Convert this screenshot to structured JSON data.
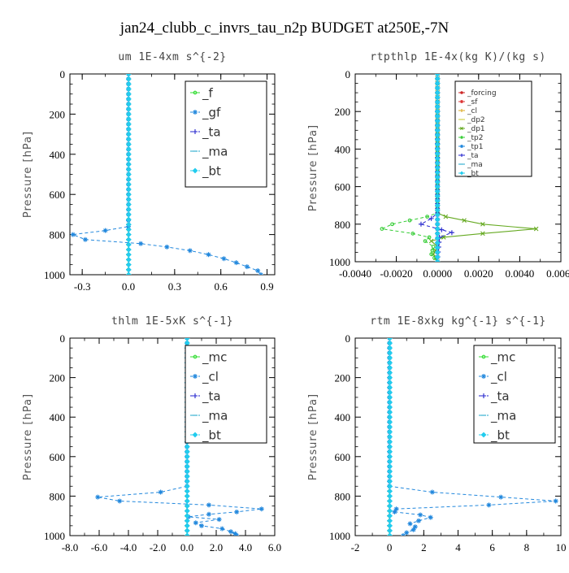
{
  "figure": {
    "title": "jan24_clubb_c_invrs_tau_n2p  BUDGET at250E,-7N"
  },
  "chart_data": [
    {
      "type": "line",
      "title": "um   1E-4xm s^{-2}",
      "ylabel": "Pressure [hPa]",
      "xlim": [
        -0.38,
        0.95
      ],
      "ylim": [
        1000,
        0
      ],
      "xticks": [
        -0.3,
        0.0,
        0.3,
        0.6,
        0.9
      ],
      "xtick_labels": [
        "-0.3",
        "0.0",
        "0.3",
        "0.6",
        "0.9"
      ],
      "yticks": [
        0,
        200,
        400,
        600,
        800,
        1000
      ],
      "ytick_labels": [
        "0",
        "200",
        "400",
        "600",
        "800",
        "1000"
      ],
      "legend_position": "top-right",
      "legend_font": 15,
      "series": [
        {
          "name": "_f",
          "color": "#33dd33",
          "marker": "circle",
          "dash": "none",
          "points": [
            [
              0,
              0
            ],
            [
              0,
              200
            ],
            [
              0,
              400
            ],
            [
              0,
              600
            ],
            [
              0,
              800
            ],
            [
              0,
              1000
            ]
          ]
        },
        {
          "name": "_gf",
          "color": "#2288dd",
          "marker": "asterisk",
          "dash": "4,3",
          "points": [
            [
              0,
              0
            ],
            [
              0,
              700
            ],
            [
              0,
              760
            ],
            [
              -0.15,
              780
            ],
            [
              -0.36,
              800
            ],
            [
              -0.28,
              825
            ],
            [
              0.08,
              845
            ],
            [
              0.25,
              862
            ],
            [
              0.4,
              880
            ],
            [
              0.52,
              900
            ],
            [
              0.62,
              920
            ],
            [
              0.7,
              940
            ],
            [
              0.77,
              960
            ],
            [
              0.84,
              980
            ],
            [
              0.86,
              1000
            ]
          ]
        },
        {
          "name": "_ta",
          "color": "#2222cc",
          "marker": "plus",
          "dash": "4,3",
          "points": [
            [
              0,
              0
            ],
            [
              0,
              1000
            ]
          ]
        },
        {
          "name": "_ma",
          "color": "#22aacc",
          "marker": "dash",
          "dash": "4,3",
          "points": [
            [
              0,
              0
            ],
            [
              0,
              1000
            ]
          ]
        },
        {
          "name": "_bt",
          "color": "#22ccee",
          "marker": "diamond",
          "dash": "4,3",
          "points": [
            [
              0.002,
              0
            ],
            [
              0.002,
              400
            ],
            [
              0.002,
              1000
            ]
          ]
        }
      ]
    },
    {
      "type": "line",
      "title": "rtpthlp   1E-4x(kg K)/(kg s)",
      "ylabel": "Pressure [hPa]",
      "xlim": [
        -0.004,
        0.006
      ],
      "ylim": [
        1000,
        0
      ],
      "xticks": [
        -0.004,
        -0.002,
        0.0,
        0.002,
        0.004,
        0.006
      ],
      "xtick_labels": [
        "-0.0040",
        "-0.0020",
        "0.0000",
        "0.0020",
        "0.0040",
        "0.0060"
      ],
      "yticks": [
        0,
        200,
        400,
        600,
        800,
        1000
      ],
      "ytick_labels": [
        "0",
        "200",
        "400",
        "600",
        "800",
        "1000"
      ],
      "legend_position": "top-right",
      "legend_font": 9,
      "series": [
        {
          "name": "_forcing",
          "color": "#cc2222",
          "marker": "circle",
          "dash": "none",
          "points": [
            [
              0,
              0
            ],
            [
              0,
              1000
            ]
          ]
        },
        {
          "name": "_sf",
          "color": "#dd3333",
          "marker": "asterisk",
          "dash": "none",
          "points": [
            [
              0,
              0
            ],
            [
              0,
              1000
            ]
          ]
        },
        {
          "name": "_cl",
          "color": "#ddaa22",
          "marker": "plus",
          "dash": "none",
          "points": [
            [
              0,
              0
            ],
            [
              0,
              1000
            ]
          ]
        },
        {
          "name": "_dp2",
          "color": "#cccc33",
          "marker": "dash",
          "dash": "none",
          "points": [
            [
              0,
              0
            ],
            [
              0,
              1000
            ]
          ]
        },
        {
          "name": "_dp1",
          "color": "#66aa22",
          "marker": "cross",
          "dash": "none",
          "points": [
            [
              0,
              0
            ],
            [
              0,
              740
            ],
            [
              0.0004,
              760
            ],
            [
              0.0022,
              800
            ],
            [
              0.0048,
              825
            ],
            [
              0.0022,
              850
            ],
            [
              0.0003,
              870
            ],
            [
              -0.0003,
              890
            ],
            [
              0,
              920
            ],
            [
              -0.0002,
              960
            ],
            [
              0,
              1000
            ]
          ]
        },
        {
          "name": "_tp2",
          "color": "#33cc33",
          "marker": "circle",
          "dash": "4,3",
          "points": [
            [
              0,
              0
            ],
            [
              0,
              740
            ],
            [
              -0.0005,
              760
            ],
            [
              -0.0022,
              800
            ],
            [
              -0.0027,
              825
            ],
            [
              -0.0012,
              850
            ],
            [
              -0.0004,
              870
            ],
            [
              -0.0006,
              890
            ],
            [
              -0.0002,
              920
            ],
            [
              -0.0003,
              960
            ],
            [
              0,
              1000
            ]
          ]
        },
        {
          "name": "_tp1",
          "color": "#2288dd",
          "marker": "asterisk",
          "dash": "4,3",
          "points": [
            [
              0,
              0
            ],
            [
              0,
              1000
            ]
          ]
        },
        {
          "name": "_ta",
          "color": "#2222cc",
          "marker": "plus",
          "dash": "4,3",
          "points": [
            [
              0,
              0
            ],
            [
              0,
              740
            ],
            [
              -0.0003,
              770
            ],
            [
              -0.0008,
              800
            ],
            [
              0.0002,
              830
            ],
            [
              0.0007,
              845
            ],
            [
              0.0001,
              870
            ],
            [
              0,
              1000
            ]
          ]
        },
        {
          "name": "_ma",
          "color": "#22aacc",
          "marker": "dash",
          "dash": "4,3",
          "points": [
            [
              0,
              0
            ],
            [
              0,
              1000
            ]
          ]
        },
        {
          "name": "_bt",
          "color": "#22ccee",
          "marker": "diamond",
          "dash": "4,3",
          "points": [
            [
              0,
              0
            ],
            [
              0,
              1000
            ]
          ]
        }
      ]
    },
    {
      "type": "line",
      "title": "thlm   1E-5xK s^{-1}",
      "ylabel": "Pressure [hPa]",
      "xlim": [
        -8.0,
        6.0
      ],
      "ylim": [
        1000,
        0
      ],
      "xticks": [
        -8,
        -6,
        -4,
        -2,
        0,
        2,
        4,
        6
      ],
      "xtick_labels": [
        "-8.0",
        "-6.0",
        "-4.0",
        "-2.0",
        "0.0",
        "2.0",
        "4.0",
        "6.0"
      ],
      "yticks": [
        0,
        200,
        400,
        600,
        800,
        1000
      ],
      "ytick_labels": [
        "0",
        "200",
        "400",
        "600",
        "800",
        "1000"
      ],
      "legend_position": "top-right",
      "legend_font": 15,
      "series": [
        {
          "name": "_mc",
          "color": "#33dd33",
          "marker": "circle",
          "dash": "none",
          "points": [
            [
              0,
              0
            ],
            [
              0,
              200
            ],
            [
              0,
              400
            ],
            [
              0,
              600
            ],
            [
              0,
              800
            ],
            [
              0,
              1000
            ]
          ]
        },
        {
          "name": "_cl",
          "color": "#2288dd",
          "marker": "asterisk",
          "dash": "4,3",
          "points": [
            [
              0,
              0
            ],
            [
              0,
              750
            ],
            [
              -1.8,
              780
            ],
            [
              -6.1,
              805
            ],
            [
              -4.6,
              825
            ],
            [
              1.5,
              845
            ],
            [
              5.1,
              865
            ],
            [
              3.4,
              880
            ],
            [
              1.5,
              892
            ],
            [
              0.1,
              905
            ],
            [
              2.2,
              918
            ],
            [
              0.6,
              935
            ],
            [
              1.0,
              950
            ],
            [
              2.4,
              965
            ],
            [
              3.0,
              980
            ],
            [
              3.3,
              990
            ],
            [
              3.4,
              1000
            ]
          ]
        },
        {
          "name": "_ta",
          "color": "#2222cc",
          "marker": "plus",
          "dash": "4,3",
          "points": [
            [
              0,
              0
            ],
            [
              0,
              1000
            ]
          ]
        },
        {
          "name": "_ma",
          "color": "#22aacc",
          "marker": "dash",
          "dash": "4,3",
          "points": [
            [
              0,
              0
            ],
            [
              0,
              1000
            ]
          ]
        },
        {
          "name": "_bt",
          "color": "#22ccee",
          "marker": "diamond",
          "dash": "4,3",
          "points": [
            [
              0.02,
              0
            ],
            [
              0.02,
              1000
            ]
          ]
        }
      ]
    },
    {
      "type": "line",
      "title": "rtm   1E-8xkg kg^{-1} s^{-1}",
      "ylabel": "Pressure [hPa]",
      "xlim": [
        -2.0,
        10.0
      ],
      "ylim": [
        1000,
        0
      ],
      "xticks": [
        -2,
        0,
        2,
        4,
        6,
        8,
        10
      ],
      "xtick_labels": [
        "-2",
        "0",
        "2",
        "4",
        "6",
        "8",
        "10"
      ],
      "yticks": [
        0,
        200,
        400,
        600,
        800,
        1000
      ],
      "ytick_labels": [
        "0",
        "200",
        "400",
        "600",
        "800",
        "1000"
      ],
      "legend_position": "top-right",
      "legend_font": 15,
      "series": [
        {
          "name": "_mc",
          "color": "#33dd33",
          "marker": "circle",
          "dash": "none",
          "points": [
            [
              0,
              0
            ],
            [
              0,
              200
            ],
            [
              0,
              400
            ],
            [
              0,
              600
            ],
            [
              0,
              800
            ],
            [
              0,
              1000
            ]
          ]
        },
        {
          "name": "_cl",
          "color": "#2288dd",
          "marker": "asterisk",
          "dash": "4,3",
          "points": [
            [
              0,
              0
            ],
            [
              0,
              750
            ],
            [
              2.5,
              780
            ],
            [
              6.5,
              805
            ],
            [
              9.7,
              825
            ],
            [
              5.8,
              845
            ],
            [
              0.4,
              865
            ],
            [
              0.3,
              880
            ],
            [
              1.8,
              895
            ],
            [
              2.4,
              908
            ],
            [
              1.7,
              925
            ],
            [
              1.2,
              940
            ],
            [
              1.5,
              955
            ],
            [
              1.4,
              970
            ],
            [
              1.0,
              985
            ],
            [
              0.8,
              1000
            ]
          ]
        },
        {
          "name": "_ta",
          "color": "#2222cc",
          "marker": "plus",
          "dash": "4,3",
          "points": [
            [
              0,
              0
            ],
            [
              0,
              1000
            ]
          ]
        },
        {
          "name": "_ma",
          "color": "#22aacc",
          "marker": "dash",
          "dash": "4,3",
          "points": [
            [
              0,
              0
            ],
            [
              0,
              1000
            ]
          ]
        },
        {
          "name": "_bt",
          "color": "#22ccee",
          "marker": "diamond",
          "dash": "4,3",
          "points": [
            [
              0.02,
              0
            ],
            [
              0.02,
              1000
            ]
          ]
        }
      ]
    }
  ]
}
